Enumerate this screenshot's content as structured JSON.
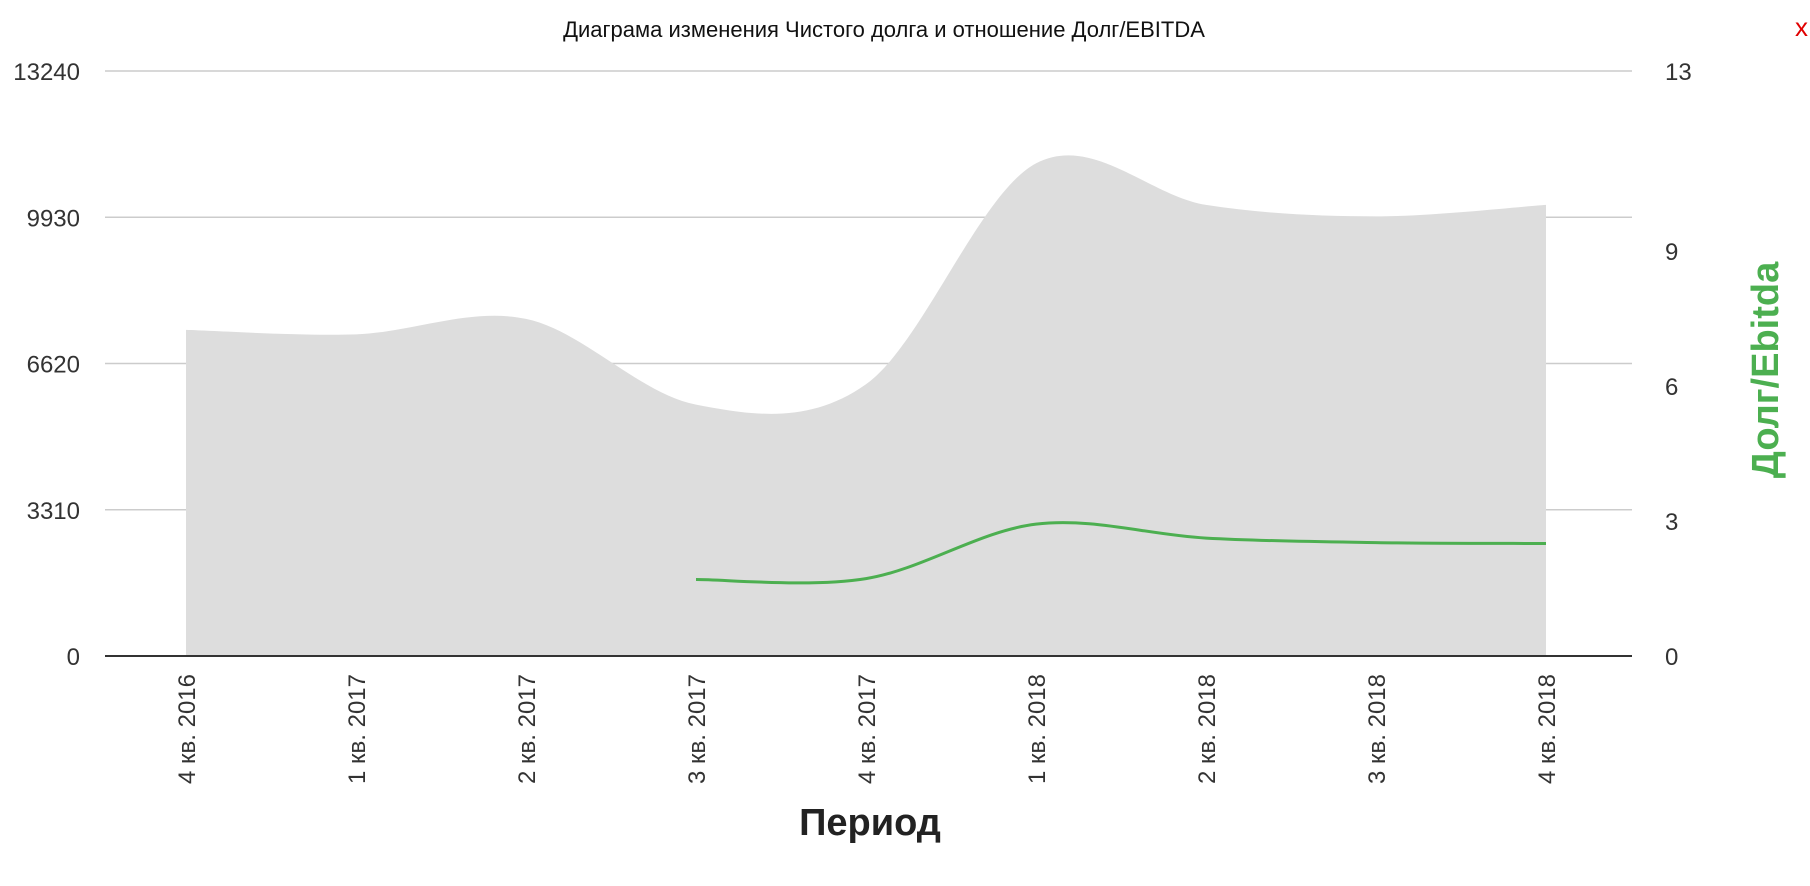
{
  "chart_data": {
    "type": "area",
    "title": "Диаграма изменения Чистого долга и отношение Долг/EBITDA",
    "xlabel": "Период",
    "ylabel": "",
    "y2label": "Долг/Ebitda",
    "categories": [
      "4 кв. 2016",
      "1 кв. 2017",
      "2 кв. 2017",
      "3 кв. 2017",
      "4 кв. 2017",
      "1 кв. 2018",
      "2 кв. 2018",
      "3 кв. 2018",
      "4 кв. 2018"
    ],
    "ylim": [
      0,
      13240
    ],
    "y2lim": [
      0,
      13
    ],
    "yticks": [
      "0",
      "3310",
      "6620",
      "9930",
      "13240"
    ],
    "y2ticks": [
      "0",
      "3",
      "6",
      "9",
      "13"
    ],
    "grid": true,
    "series": [
      {
        "type": "area",
        "axis": "left",
        "color": "#dddddd",
        "values": [
          7380,
          7280,
          7630,
          5690,
          6150,
          11150,
          10210,
          9950,
          10210
        ]
      },
      {
        "type": "line",
        "axis": "right",
        "color": "#4caf50",
        "values": [
          null,
          null,
          null,
          1.7,
          1.72,
          2.93,
          2.62,
          2.52,
          2.5
        ]
      }
    ]
  },
  "close_label": "x"
}
